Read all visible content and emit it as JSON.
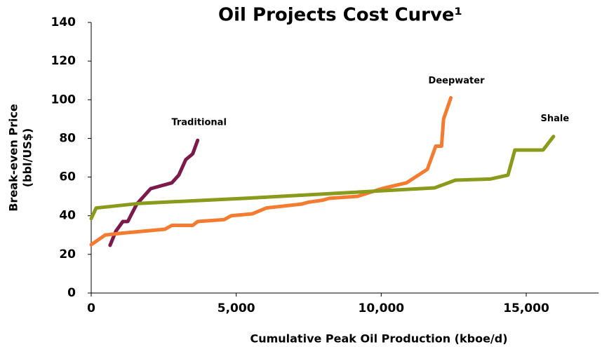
{
  "chart_data": {
    "type": "line",
    "title": "Oil Projects Cost Curve¹",
    "xlabel": "Cumulative Peak Oil Production (kboe/d)",
    "ylabel": [
      "Break-even Price",
      "(bbl/US$)"
    ],
    "xlim": [
      0,
      17500
    ],
    "ylim": [
      0,
      140
    ],
    "xticks": [
      0,
      {
        "value": 5000,
        "label": "5,000"
      },
      {
        "value": 10000,
        "label": "10,000"
      },
      {
        "value": 15000,
        "label": "15,000"
      }
    ],
    "yticks": [
      0,
      20,
      40,
      60,
      80,
      100,
      120,
      140
    ],
    "grid": false,
    "legend": "inline",
    "series": [
      {
        "name": "Traditional",
        "color": "#7b1a4b",
        "x": [
          650,
          850,
          1090,
          1260,
          1570,
          2050,
          2780,
          3020,
          3260,
          3500,
          3670
        ],
        "values": [
          24.7,
          32,
          37,
          37,
          46,
          54,
          57,
          61,
          69,
          72,
          79
        ]
      },
      {
        "name": "Deepwater",
        "color": "#f47b30",
        "x": [
          0,
          480,
          1090,
          2540,
          2780,
          3500,
          3670,
          4590,
          4830,
          5560,
          6040,
          7250,
          7490,
          7970,
          8210,
          9180,
          10020,
          10870,
          11590,
          11880,
          12080,
          12150,
          12400
        ],
        "values": [
          25,
          30,
          31,
          33,
          35,
          35,
          37,
          38,
          40,
          41,
          44,
          46,
          47,
          48,
          49,
          50,
          54,
          57,
          64,
          76,
          76,
          90,
          101
        ]
      },
      {
        "name": "Shale",
        "color": "#8a9a1a",
        "x": [
          0,
          170,
          1690,
          5310,
          8940,
          11840,
          12560,
          13770,
          14370,
          14610,
          15580,
          15940
        ],
        "values": [
          38.5,
          44,
          46.4,
          49,
          52,
          54.4,
          58.4,
          59,
          61,
          74,
          74,
          81
        ]
      }
    ]
  }
}
